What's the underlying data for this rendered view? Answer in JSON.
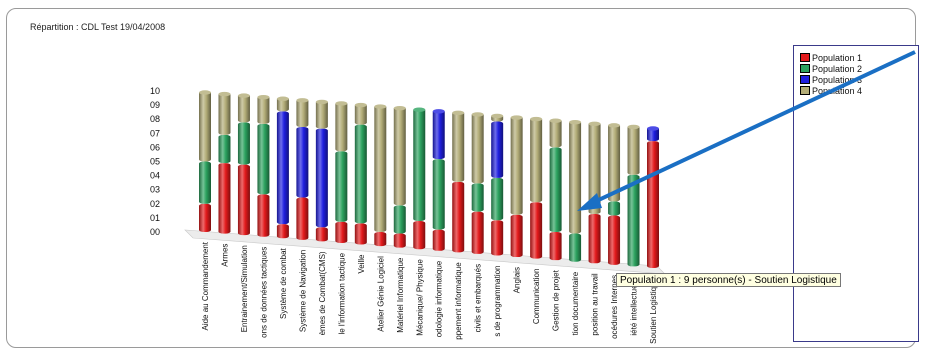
{
  "chart_title": "Répartition : CDL Test 19/04/2008",
  "tooltip_text": "Population 1 : 9 personne(s) - Soutien Logistique",
  "colors": {
    "arrow": "#1a6fc4",
    "frame": "#9a9a9a"
  },
  "chart_data": {
    "type": "bar",
    "stacked": true,
    "title": "Répartition : CDL Test 19/04/2008",
    "ylim": [
      0,
      10
    ],
    "ytick_labels": [
      "00",
      "01",
      "02",
      "03",
      "04",
      "05",
      "06",
      "07",
      "08",
      "09",
      "10"
    ],
    "legend_position": "right",
    "categories": [
      "Aide au Commandement",
      "Armes",
      "Entrainement/Simulation",
      "ons de données tactiques",
      "Système de combat",
      "Système de Navigation",
      "èmes de Combat(CMS)",
      "le l'information tactique",
      "Veille",
      "Atelier Génie Logiciel",
      "Matériel Informatique",
      "Mécanique/ Physique",
      "odologie informatique",
      "ppement informatique",
      "civils et embarqués",
      "s de programmation",
      "Anglais",
      "Communication",
      "Gestion de projet",
      "tion documentaire",
      "position au travail",
      "océdures Internes",
      "iété intellectuelle",
      "Soutien Logistique"
    ],
    "series": [
      {
        "name": "Population 1",
        "color": "#e31a1c",
        "values": [
          2,
          5,
          5,
          3,
          1,
          3,
          1,
          1.5,
          1.5,
          1,
          1,
          2,
          1.5,
          5,
          3,
          2.5,
          3,
          4,
          2,
          0,
          3.5,
          3.5,
          0,
          9
        ]
      },
      {
        "name": "Population 2",
        "color": "#2ca25f",
        "values": [
          3,
          2,
          3,
          5,
          0,
          0,
          0,
          5,
          7,
          0,
          2,
          8,
          5,
          0,
          2,
          3,
          0,
          0,
          6,
          2,
          0,
          1,
          6.5,
          0
        ]
      },
      {
        "name": "Population 3",
        "color": "#1f1fe0",
        "values": [
          0,
          0,
          0,
          0,
          8,
          5,
          7,
          0,
          0,
          0,
          0,
          0,
          3.5,
          0,
          0,
          4,
          0,
          0,
          0,
          0,
          0,
          0,
          0,
          1
        ]
      },
      {
        "name": "Population 4",
        "color": "#b3ad78",
        "values": [
          5,
          3,
          2,
          2,
          1,
          2,
          2,
          3.5,
          1.5,
          9,
          7,
          0,
          0,
          5,
          5,
          0.5,
          7,
          6,
          2,
          8,
          6.5,
          5.5,
          3.5,
          0
        ]
      }
    ]
  }
}
